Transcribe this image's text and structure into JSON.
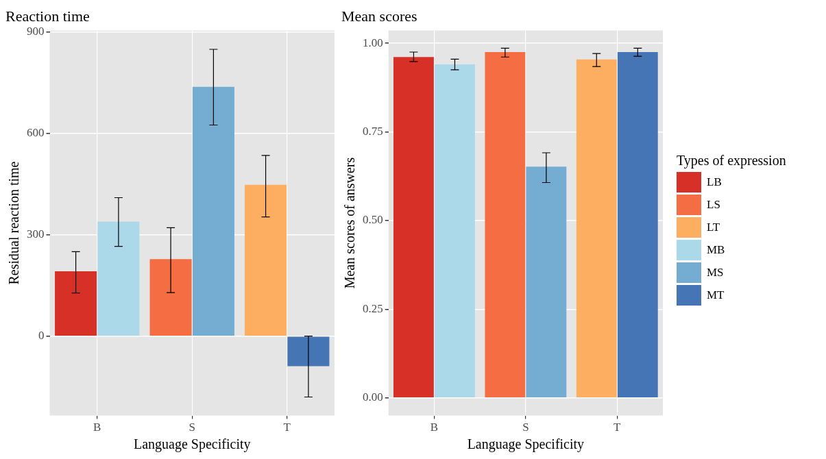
{
  "chart_data": [
    {
      "type": "bar",
      "title": "Reaction time",
      "xlabel": "Language Specificity",
      "ylabel": "Residual reaction time",
      "categories": [
        "B",
        "S",
        "T"
      ],
      "ylim": [
        -235,
        905
      ],
      "yticks": [
        0,
        300,
        600,
        900
      ],
      "grid": true,
      "legend": false,
      "series": [
        {
          "color": "#d73027",
          "values": [
            192,
            null,
            null
          ],
          "errors": [
            [
              128,
              250
            ],
            null,
            null
          ]
        },
        {
          "color": "#f46d43",
          "values": [
            null,
            228,
            null
          ],
          "errors": [
            null,
            [
              129,
              321
            ],
            null
          ]
        },
        {
          "color": "#fdae61",
          "values": [
            null,
            null,
            448
          ],
          "errors": [
            null,
            null,
            [
              353,
              535
            ]
          ]
        },
        {
          "color": "#abd9e9",
          "values": [
            339,
            null,
            null
          ],
          "errors": [
            [
              266,
              410
            ],
            null,
            null
          ]
        },
        {
          "color": "#74add1",
          "values": [
            null,
            738,
            null
          ],
          "errors": [
            null,
            [
              625,
              849
            ],
            null
          ]
        },
        {
          "color": "#4575b4",
          "values": [
            null,
            null,
            -89
          ],
          "errors": [
            null,
            null,
            [
              -180,
              0
            ]
          ]
        }
      ]
    },
    {
      "type": "bar",
      "title": "Mean scores",
      "xlabel": "Language Specificity",
      "ylabel": "Mean scores of answers",
      "legend_title": "Types of expression",
      "categories": [
        "B",
        "S",
        "T"
      ],
      "ylim": [
        -0.05,
        1.036
      ],
      "yticks": [
        {
          "value": 0,
          "label": "0.00"
        },
        {
          "value": 0.25,
          "label": "0.25"
        },
        {
          "value": 0.5,
          "label": "0.50"
        },
        {
          "value": 0.75,
          "label": "0.75"
        },
        {
          "value": 1,
          "label": "1.00"
        }
      ],
      "grid": true,
      "legend": "right",
      "series": [
        {
          "name": "LB",
          "color": "#d73027",
          "values": [
            0.961,
            null,
            null
          ],
          "errors": [
            [
              0.948,
              0.975
            ],
            null,
            null
          ]
        },
        {
          "name": "LS",
          "color": "#f46d43",
          "values": [
            null,
            0.975,
            null
          ],
          "errors": [
            null,
            [
              0.961,
              0.986
            ],
            null
          ]
        },
        {
          "name": "LT",
          "color": "#fdae61",
          "values": [
            null,
            null,
            0.954
          ],
          "errors": [
            null,
            null,
            [
              0.934,
              0.971
            ]
          ]
        },
        {
          "name": "MB",
          "color": "#abd9e9",
          "values": [
            0.94,
            null,
            null
          ],
          "errors": [
            [
              0.925,
              0.955
            ],
            null,
            null
          ]
        },
        {
          "name": "MS",
          "color": "#74add1",
          "values": [
            null,
            0.652,
            null
          ],
          "errors": [
            null,
            [
              0.607,
              0.691
            ],
            null
          ]
        },
        {
          "name": "MT",
          "color": "#4575b4",
          "values": [
            null,
            null,
            0.975
          ],
          "errors": [
            null,
            null,
            [
              0.963,
              0.986
            ]
          ]
        }
      ]
    }
  ]
}
